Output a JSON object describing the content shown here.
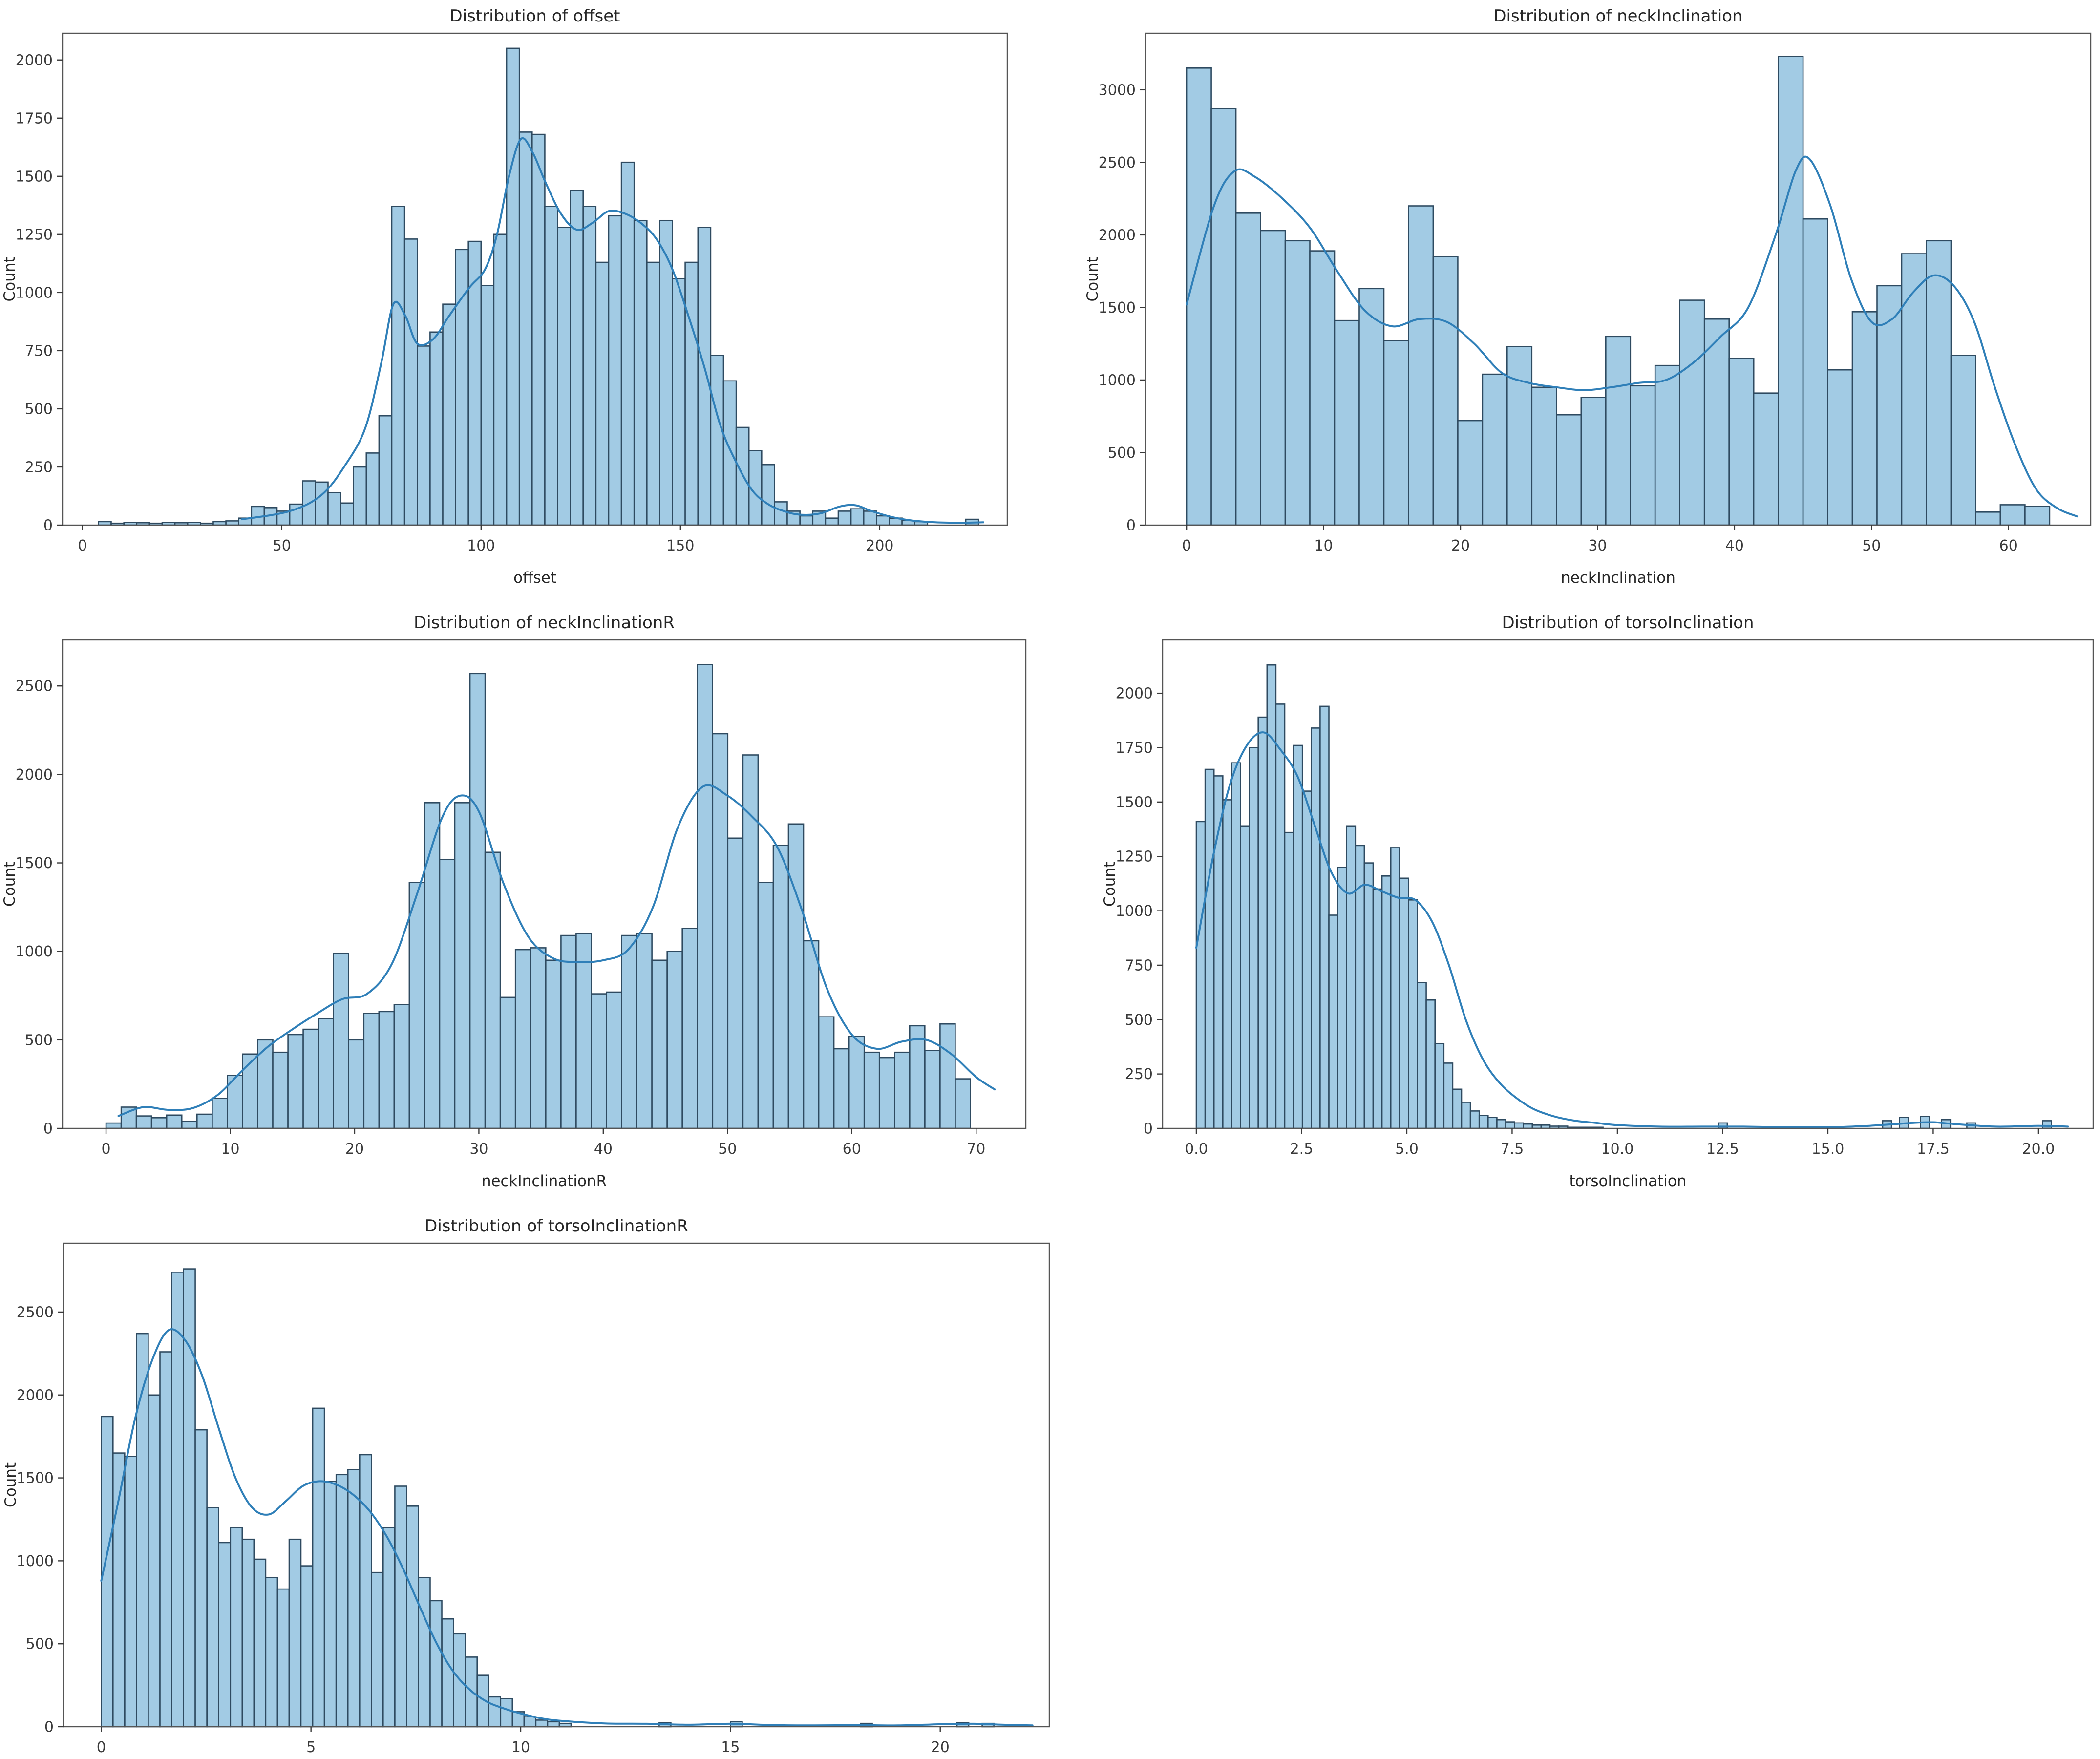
{
  "figure": {
    "background": "#ffffff",
    "description": "Grid of five seaborn histogram + KDE distribution plots"
  },
  "style": {
    "bar_fill": "#a2cbe4",
    "bar_edge": "#2e4a60",
    "kde_color": "#2f7fb8",
    "spine_color": "#555555",
    "tick_color": "#3a3a3a",
    "text_color": "#262626"
  },
  "chart_data": [
    {
      "type": "bar",
      "subtype": "histogram+kde",
      "title": "Distribution of offset",
      "xlabel": "offset",
      "ylabel": "Count",
      "xlim": [
        -5,
        232
      ],
      "ylim": [
        0,
        2115
      ],
      "xticks": [
        0,
        50,
        100,
        150,
        200
      ],
      "xtick_labels": [
        "0",
        "50",
        "100",
        "150",
        "200"
      ],
      "yticks": [
        0,
        250,
        500,
        750,
        1000,
        1250,
        1500,
        1750,
        2000
      ],
      "ytick_labels": [
        "0",
        "250",
        "500",
        "750",
        "1000",
        "1250",
        "1500",
        "1750",
        "2000"
      ],
      "grid": false,
      "legend": "none",
      "bins": {
        "start": 4,
        "width": 3.2,
        "counts": [
          15,
          8,
          12,
          10,
          8,
          12,
          10,
          12,
          8,
          15,
          18,
          30,
          80,
          75,
          60,
          90,
          190,
          185,
          140,
          95,
          250,
          310,
          470,
          1370,
          1230,
          770,
          830,
          950,
          1185,
          1220,
          1030,
          1250,
          2050,
          1690,
          1680,
          1370,
          1280,
          1440,
          1370,
          1130,
          1330,
          1560,
          1310,
          1130,
          1310,
          1060,
          1130,
          1280,
          730,
          620,
          420,
          320,
          260,
          100,
          60,
          40,
          60,
          30,
          60,
          70,
          60,
          40,
          30,
          20,
          15,
          0,
          0,
          0,
          25
        ]
      },
      "extra_bars": [],
      "kde": [
        [
          40,
          25
        ],
        [
          52,
          60
        ],
        [
          60,
          130
        ],
        [
          66,
          260
        ],
        [
          71,
          420
        ],
        [
          75,
          700
        ],
        [
          78,
          950
        ],
        [
          81,
          900
        ],
        [
          84,
          780
        ],
        [
          88,
          800
        ],
        [
          92,
          900
        ],
        [
          97,
          1020
        ],
        [
          101,
          1100
        ],
        [
          104,
          1250
        ],
        [
          107,
          1500
        ],
        [
          110,
          1660
        ],
        [
          113,
          1600
        ],
        [
          116,
          1480
        ],
        [
          120,
          1340
        ],
        [
          124,
          1270
        ],
        [
          128,
          1300
        ],
        [
          132,
          1350
        ],
        [
          136,
          1340
        ],
        [
          140,
          1300
        ],
        [
          144,
          1230
        ],
        [
          148,
          1100
        ],
        [
          152,
          900
        ],
        [
          156,
          680
        ],
        [
          160,
          430
        ],
        [
          164,
          270
        ],
        [
          168,
          150
        ],
        [
          172,
          90
        ],
        [
          176,
          60
        ],
        [
          180,
          45
        ],
        [
          185,
          50
        ],
        [
          190,
          80
        ],
        [
          194,
          85
        ],
        [
          198,
          60
        ],
        [
          203,
          35
        ],
        [
          208,
          20
        ],
        [
          214,
          12
        ],
        [
          220,
          10
        ],
        [
          226,
          12
        ]
      ]
    },
    {
      "type": "bar",
      "subtype": "histogram+kde",
      "title": "Distribution of neckInclination",
      "xlabel": "neckInclination",
      "ylabel": "Count",
      "xlim": [
        -3,
        66
      ],
      "ylim": [
        0,
        3390
      ],
      "xticks": [
        0,
        10,
        20,
        30,
        40,
        50,
        60
      ],
      "xtick_labels": [
        "0",
        "10",
        "20",
        "30",
        "40",
        "50",
        "60"
      ],
      "yticks": [
        0,
        500,
        1000,
        1500,
        2000,
        2500,
        3000
      ],
      "ytick_labels": [
        "0",
        "500",
        "1000",
        "1500",
        "2000",
        "2500",
        "3000"
      ],
      "grid": false,
      "legend": "none",
      "bins": {
        "start": 0,
        "width": 1.8,
        "counts": [
          3150,
          2870,
          2150,
          2030,
          1960,
          1890,
          1410,
          1630,
          1270,
          2200,
          1850,
          720,
          1040,
          1230,
          950,
          760,
          880,
          1300,
          960,
          1100,
          1550,
          1420,
          1150,
          910,
          3230,
          2110,
          1070,
          1470,
          1650,
          1870,
          1960,
          1170,
          90,
          140,
          130
        ]
      },
      "extra_bars": [],
      "kde": [
        [
          0,
          1520
        ],
        [
          2,
          2200
        ],
        [
          3.5,
          2440
        ],
        [
          5,
          2400
        ],
        [
          7,
          2250
        ],
        [
          9,
          2050
        ],
        [
          11,
          1750
        ],
        [
          13,
          1480
        ],
        [
          15,
          1370
        ],
        [
          17,
          1420
        ],
        [
          19,
          1400
        ],
        [
          21,
          1250
        ],
        [
          23,
          1050
        ],
        [
          25,
          980
        ],
        [
          27,
          950
        ],
        [
          29,
          930
        ],
        [
          31,
          950
        ],
        [
          33,
          980
        ],
        [
          35,
          1000
        ],
        [
          37,
          1120
        ],
        [
          39,
          1300
        ],
        [
          41,
          1500
        ],
        [
          43,
          2000
        ],
        [
          44.5,
          2450
        ],
        [
          45.5,
          2520
        ],
        [
          47,
          2200
        ],
        [
          48.5,
          1700
        ],
        [
          50,
          1400
        ],
        [
          51.5,
          1420
        ],
        [
          53,
          1600
        ],
        [
          54.5,
          1720
        ],
        [
          56,
          1650
        ],
        [
          57.5,
          1400
        ],
        [
          59,
          950
        ],
        [
          60.5,
          550
        ],
        [
          62,
          250
        ],
        [
          63.5,
          120
        ],
        [
          65,
          60
        ]
      ]
    },
    {
      "type": "bar",
      "subtype": "histogram+kde",
      "title": "Distribution of neckInclinationR",
      "xlabel": "neckInclinationR",
      "ylabel": "Count",
      "xlim": [
        -3.5,
        74
      ],
      "ylim": [
        0,
        2760
      ],
      "xticks": [
        0,
        10,
        20,
        30,
        40,
        50,
        60,
        70
      ],
      "xtick_labels": [
        "0",
        "10",
        "20",
        "30",
        "40",
        "50",
        "60",
        "70"
      ],
      "yticks": [
        0,
        500,
        1000,
        1500,
        2000,
        2500
      ],
      "ytick_labels": [
        "0",
        "500",
        "1000",
        "1500",
        "2000",
        "2500"
      ],
      "grid": false,
      "legend": "none",
      "bins": {
        "start": 0,
        "width": 1.22,
        "counts": [
          30,
          120,
          70,
          60,
          75,
          40,
          80,
          170,
          300,
          420,
          500,
          430,
          530,
          560,
          620,
          990,
          500,
          650,
          660,
          700,
          1390,
          1840,
          1520,
          1840,
          2570,
          1560,
          740,
          1010,
          1020,
          950,
          1090,
          1100,
          760,
          770,
          1090,
          1100,
          950,
          1000,
          1130,
          2620,
          2230,
          1640,
          2110,
          1390,
          1600,
          1720,
          1060,
          630,
          450,
          520,
          430,
          400,
          430,
          580,
          440,
          590,
          280
        ]
      },
      "extra_bars": [],
      "kde": [
        [
          1,
          70
        ],
        [
          3,
          120
        ],
        [
          5,
          105
        ],
        [
          7,
          115
        ],
        [
          9,
          190
        ],
        [
          11,
          330
        ],
        [
          13,
          460
        ],
        [
          15,
          560
        ],
        [
          17,
          650
        ],
        [
          19,
          730
        ],
        [
          21,
          760
        ],
        [
          23,
          930
        ],
        [
          25,
          1320
        ],
        [
          27,
          1750
        ],
        [
          28.5,
          1880
        ],
        [
          30,
          1790
        ],
        [
          32,
          1380
        ],
        [
          34,
          1080
        ],
        [
          36,
          960
        ],
        [
          38,
          940
        ],
        [
          40,
          950
        ],
        [
          42,
          1010
        ],
        [
          44,
          1250
        ],
        [
          46,
          1700
        ],
        [
          48,
          1930
        ],
        [
          50,
          1880
        ],
        [
          52,
          1760
        ],
        [
          54,
          1590
        ],
        [
          56,
          1230
        ],
        [
          58,
          790
        ],
        [
          60,
          530
        ],
        [
          62,
          450
        ],
        [
          64,
          490
        ],
        [
          66,
          500
        ],
        [
          68,
          420
        ],
        [
          70,
          290
        ],
        [
          71.5,
          220
        ]
      ]
    },
    {
      "type": "bar",
      "subtype": "histogram+kde",
      "title": "Distribution of torsoInclination",
      "xlabel": "torsoInclination",
      "ylabel": "Count",
      "xlim": [
        -0.8,
        21.3
      ],
      "ylim": [
        0,
        2245
      ],
      "xticks": [
        0,
        2.5,
        5,
        7.5,
        10,
        12.5,
        15,
        17.5,
        20
      ],
      "xtick_labels": [
        "0.0",
        "2.5",
        "5.0",
        "7.5",
        "10.0",
        "12.5",
        "15.0",
        "17.5",
        "20.0"
      ],
      "yticks": [
        0,
        250,
        500,
        750,
        1000,
        1250,
        1500,
        1750,
        2000
      ],
      "ytick_labels": [
        "0",
        "250",
        "500",
        "750",
        "1000",
        "1250",
        "1500",
        "1750",
        "2000"
      ],
      "grid": false,
      "legend": "none",
      "bins": {
        "start": 0,
        "width": 0.21,
        "counts": [
          1410,
          1650,
          1620,
          1510,
          1680,
          1390,
          1750,
          1890,
          2130,
          1950,
          1360,
          1760,
          1550,
          1840,
          1940,
          980,
          1200,
          1390,
          1300,
          1220,
          1100,
          1160,
          1290,
          1150,
          1050,
          670,
          590,
          390,
          300,
          180,
          120,
          80,
          60,
          50,
          40,
          30,
          25,
          20,
          15,
          15,
          10,
          10,
          5,
          5,
          5,
          5
        ]
      },
      "extra_bars": [
        [
          12.4,
          25
        ],
        [
          16.3,
          35
        ],
        [
          16.7,
          50
        ],
        [
          17.2,
          55
        ],
        [
          17.7,
          40
        ],
        [
          18.3,
          25
        ],
        [
          20.1,
          35
        ]
      ],
      "kde": [
        [
          0,
          830
        ],
        [
          0.4,
          1250
        ],
        [
          0.8,
          1580
        ],
        [
          1.2,
          1760
        ],
        [
          1.6,
          1820
        ],
        [
          2,
          1740
        ],
        [
          2.4,
          1620
        ],
        [
          2.8,
          1400
        ],
        [
          3.2,
          1180
        ],
        [
          3.6,
          1080
        ],
        [
          4,
          1120
        ],
        [
          4.4,
          1090
        ],
        [
          4.8,
          1060
        ],
        [
          5.2,
          1050
        ],
        [
          5.6,
          950
        ],
        [
          6,
          750
        ],
        [
          6.4,
          500
        ],
        [
          6.8,
          320
        ],
        [
          7.2,
          210
        ],
        [
          7.6,
          140
        ],
        [
          8,
          90
        ],
        [
          8.5,
          55
        ],
        [
          9,
          35
        ],
        [
          9.5,
          25
        ],
        [
          10,
          15
        ],
        [
          11,
          8
        ],
        [
          12,
          8
        ],
        [
          13,
          8
        ],
        [
          14,
          5
        ],
        [
          15,
          5
        ],
        [
          16,
          12
        ],
        [
          17,
          25
        ],
        [
          17.5,
          28
        ],
        [
          18,
          20
        ],
        [
          19,
          8
        ],
        [
          20,
          12
        ],
        [
          20.7,
          8
        ]
      ]
    },
    {
      "type": "bar",
      "subtype": "histogram+kde",
      "title": "Distribution of torsoInclinationR",
      "xlabel": "torsoInclinationR",
      "ylabel": "Count",
      "xlim": [
        -0.9,
        22.6
      ],
      "ylim": [
        0,
        2915
      ],
      "xticks": [
        0,
        5,
        10,
        15,
        20
      ],
      "xtick_labels": [
        "0",
        "5",
        "10",
        "15",
        "20"
      ],
      "yticks": [
        0,
        500,
        1000,
        1500,
        2000,
        2500
      ],
      "ytick_labels": [
        "0",
        "500",
        "1000",
        "1500",
        "2000",
        "2500"
      ],
      "grid": false,
      "legend": "none",
      "bins": {
        "start": 0,
        "width": 0.28,
        "counts": [
          1870,
          1650,
          1630,
          2370,
          2000,
          2260,
          2740,
          2760,
          1790,
          1320,
          1110,
          1200,
          1130,
          1010,
          900,
          830,
          1130,
          970,
          1920,
          1480,
          1520,
          1550,
          1640,
          930,
          1200,
          1450,
          1330,
          900,
          760,
          650,
          560,
          420,
          310,
          180,
          170,
          90,
          60,
          40,
          30,
          20
        ]
      },
      "extra_bars": [
        [
          13.3,
          25
        ],
        [
          15.0,
          30
        ],
        [
          18.1,
          20
        ],
        [
          20.4,
          25
        ],
        [
          21.0,
          20
        ]
      ],
      "kde": [
        [
          0,
          880
        ],
        [
          0.4,
          1350
        ],
        [
          0.8,
          1850
        ],
        [
          1.2,
          2200
        ],
        [
          1.6,
          2390
        ],
        [
          2,
          2330
        ],
        [
          2.4,
          2120
        ],
        [
          2.8,
          1800
        ],
        [
          3.2,
          1500
        ],
        [
          3.6,
          1320
        ],
        [
          4,
          1280
        ],
        [
          4.4,
          1360
        ],
        [
          4.8,
          1450
        ],
        [
          5.2,
          1480
        ],
        [
          5.6,
          1460
        ],
        [
          6,
          1400
        ],
        [
          6.4,
          1300
        ],
        [
          6.8,
          1150
        ],
        [
          7.2,
          950
        ],
        [
          7.6,
          720
        ],
        [
          8,
          500
        ],
        [
          8.4,
          330
        ],
        [
          8.8,
          220
        ],
        [
          9.2,
          150
        ],
        [
          9.6,
          110
        ],
        [
          10,
          80
        ],
        [
          10.5,
          50
        ],
        [
          11,
          35
        ],
        [
          12,
          20
        ],
        [
          13,
          18
        ],
        [
          14,
          12
        ],
        [
          15,
          18
        ],
        [
          16,
          10
        ],
        [
          17,
          8
        ],
        [
          18,
          10
        ],
        [
          19,
          8
        ],
        [
          20,
          15
        ],
        [
          20.8,
          18
        ],
        [
          21.5,
          12
        ],
        [
          22.2,
          8
        ]
      ]
    }
  ]
}
